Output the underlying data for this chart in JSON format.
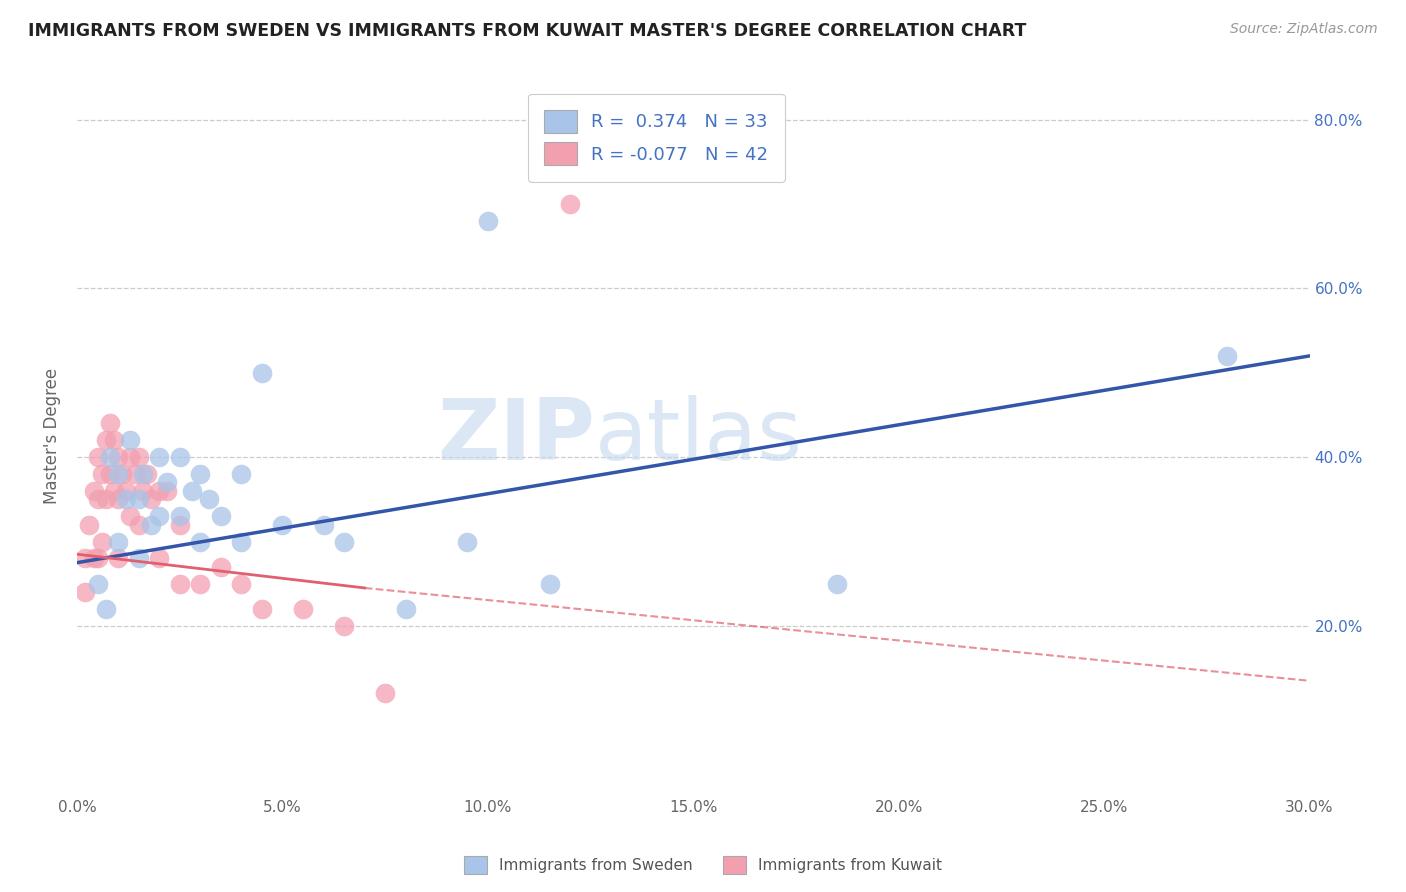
{
  "title": "IMMIGRANTS FROM SWEDEN VS IMMIGRANTS FROM KUWAIT MASTER'S DEGREE CORRELATION CHART",
  "source": "Source: ZipAtlas.com",
  "ylabel": "Master's Degree",
  "legend_label_blue": "Immigrants from Sweden",
  "legend_label_pink": "Immigrants from Kuwait",
  "r_blue": 0.374,
  "n_blue": 33,
  "r_pink": -0.077,
  "n_pink": 42,
  "xlim": [
    0.0,
    0.3
  ],
  "ylim": [
    0.0,
    0.85
  ],
  "xtick_labels": [
    "0.0%",
    "5.0%",
    "10.0%",
    "15.0%",
    "20.0%",
    "25.0%",
    "30.0%"
  ],
  "xtick_values": [
    0.0,
    0.05,
    0.1,
    0.15,
    0.2,
    0.25,
    0.3
  ],
  "ytick_labels": [
    "20.0%",
    "40.0%",
    "60.0%",
    "80.0%"
  ],
  "ytick_values": [
    0.2,
    0.4,
    0.6,
    0.8
  ],
  "color_blue": "#a8c4e8",
  "color_pink": "#f2a0b0",
  "trendline_blue": "#3355aa",
  "trendline_pink": "#e06070",
  "background_color": "#ffffff",
  "watermark_zip": "ZIP",
  "watermark_atlas": "atlas",
  "sweden_x": [
    0.005,
    0.007,
    0.008,
    0.01,
    0.01,
    0.012,
    0.013,
    0.015,
    0.015,
    0.016,
    0.018,
    0.02,
    0.02,
    0.022,
    0.025,
    0.025,
    0.028,
    0.03,
    0.03,
    0.032,
    0.035,
    0.04,
    0.04,
    0.045,
    0.05,
    0.06,
    0.065,
    0.08,
    0.095,
    0.1,
    0.115,
    0.185,
    0.28
  ],
  "sweden_y": [
    0.25,
    0.22,
    0.4,
    0.38,
    0.3,
    0.35,
    0.42,
    0.35,
    0.28,
    0.38,
    0.32,
    0.4,
    0.33,
    0.37,
    0.4,
    0.33,
    0.36,
    0.38,
    0.3,
    0.35,
    0.33,
    0.38,
    0.3,
    0.5,
    0.32,
    0.32,
    0.3,
    0.22,
    0.3,
    0.68,
    0.25,
    0.25,
    0.52
  ],
  "kuwait_x": [
    0.002,
    0.002,
    0.003,
    0.004,
    0.004,
    0.005,
    0.005,
    0.005,
    0.006,
    0.006,
    0.007,
    0.007,
    0.008,
    0.008,
    0.009,
    0.009,
    0.01,
    0.01,
    0.01,
    0.011,
    0.012,
    0.013,
    0.013,
    0.014,
    0.015,
    0.015,
    0.016,
    0.017,
    0.018,
    0.02,
    0.02,
    0.022,
    0.025,
    0.025,
    0.03,
    0.035,
    0.04,
    0.045,
    0.055,
    0.065,
    0.075,
    0.12
  ],
  "kuwait_y": [
    0.28,
    0.24,
    0.32,
    0.36,
    0.28,
    0.4,
    0.35,
    0.28,
    0.38,
    0.3,
    0.42,
    0.35,
    0.44,
    0.38,
    0.42,
    0.36,
    0.4,
    0.35,
    0.28,
    0.38,
    0.36,
    0.4,
    0.33,
    0.38,
    0.4,
    0.32,
    0.36,
    0.38,
    0.35,
    0.36,
    0.28,
    0.36,
    0.32,
    0.25,
    0.25,
    0.27,
    0.25,
    0.22,
    0.22,
    0.2,
    0.12,
    0.7
  ],
  "trendline_blue_x0": 0.0,
  "trendline_blue_y0": 0.275,
  "trendline_blue_x1": 0.3,
  "trendline_blue_y1": 0.52,
  "trendline_pink_solid_x0": 0.0,
  "trendline_pink_solid_y0": 0.285,
  "trendline_pink_solid_x1": 0.07,
  "trendline_pink_solid_y1": 0.245,
  "trendline_pink_dashed_x0": 0.07,
  "trendline_pink_dashed_y0": 0.245,
  "trendline_pink_dashed_x1": 0.3,
  "trendline_pink_dashed_y1": 0.135
}
